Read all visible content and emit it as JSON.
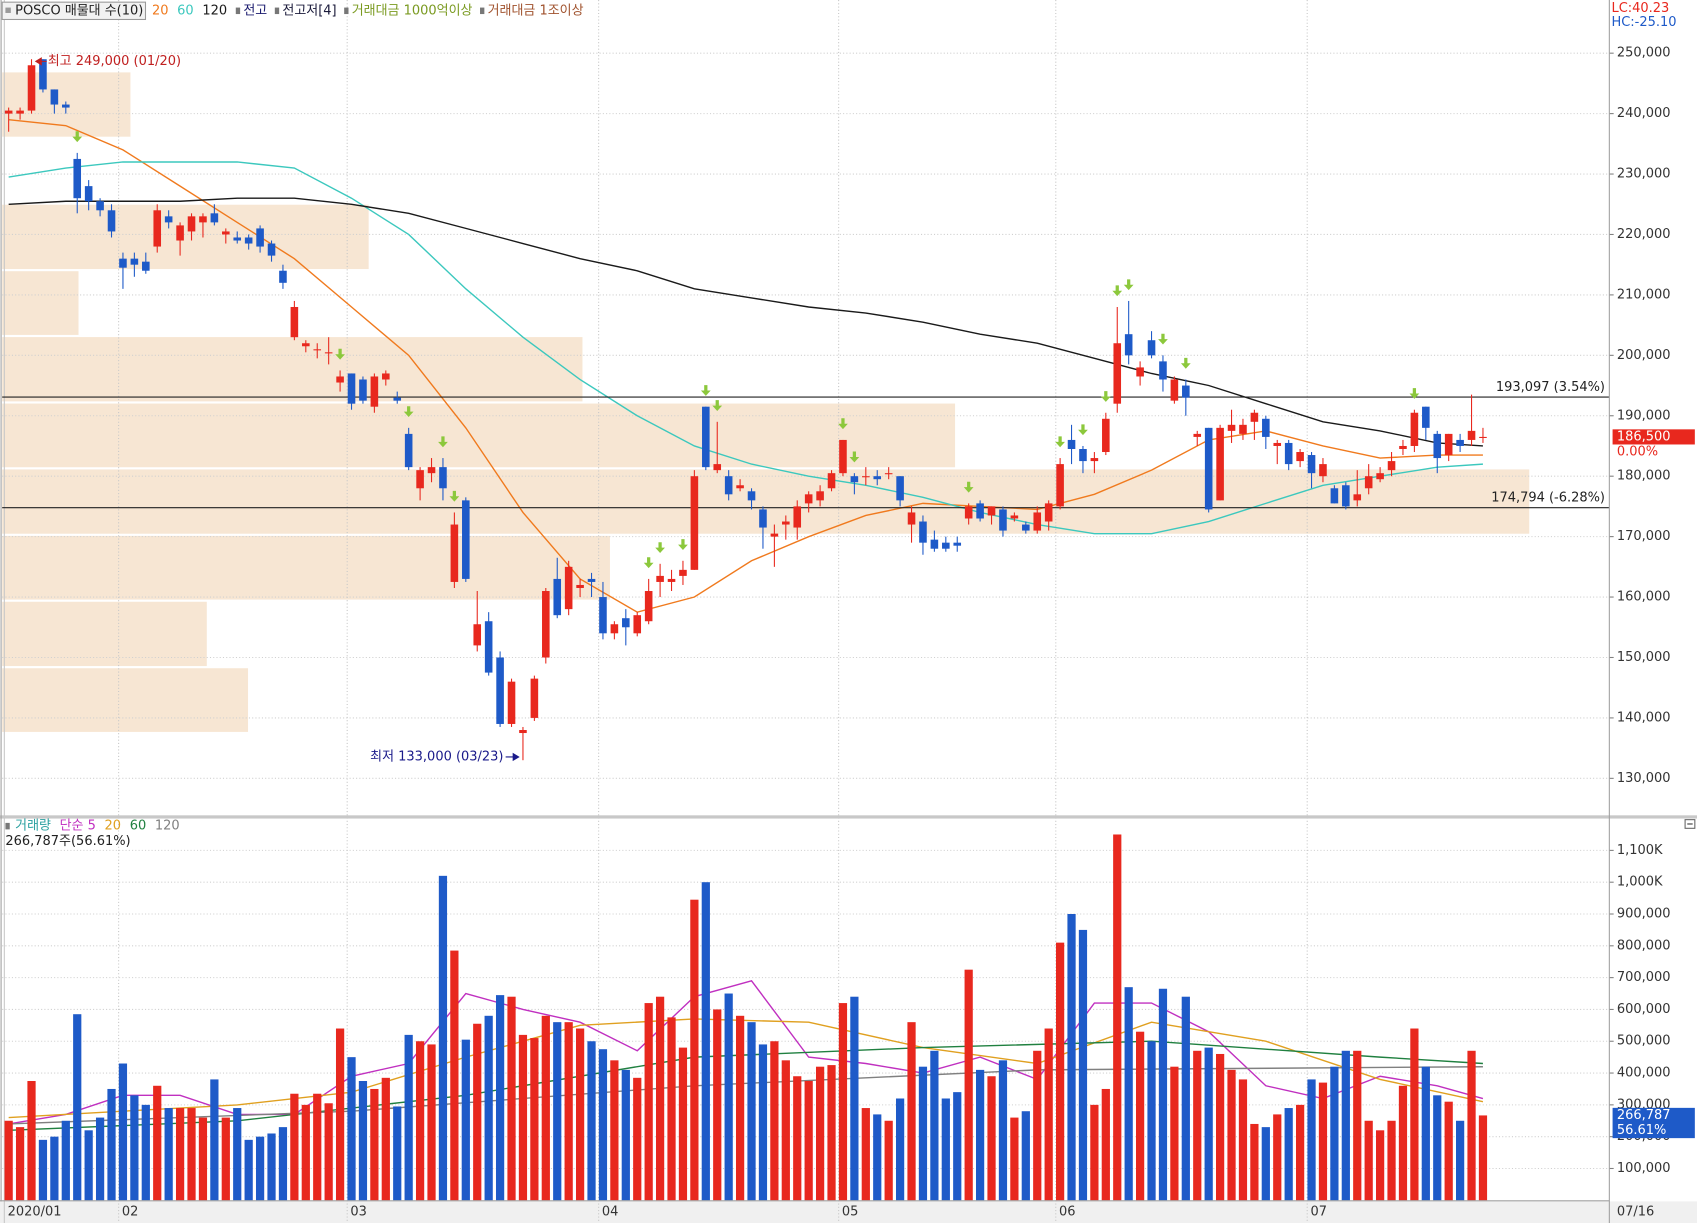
{
  "chart_data": {
    "type": "candlestick",
    "title": "POSCO 매물대 수(10)",
    "header_labels": [
      {
        "text": "전고",
        "color": "#1a1a6e"
      },
      {
        "text": "전고저[4]",
        "color": "#1a1a3a"
      },
      {
        "text": "거래대금 1000억이상",
        "color": "#7a9a20"
      },
      {
        "text": "거래대금 1조이상",
        "color": "#a0522d"
      }
    ],
    "corner_labels": [
      {
        "text": "LC:40.23",
        "color": "#e8281e"
      },
      {
        "text": "HC:-25.10",
        "color": "#1e5ac8"
      }
    ],
    "categories": [
      "2020/01",
      null,
      null,
      null,
      null,
      null,
      null,
      null,
      null,
      null,
      "02",
      null,
      null,
      null,
      null,
      null,
      null,
      null,
      null,
      null,
      null,
      null,
      null,
      null,
      null,
      null,
      null,
      null,
      null,
      null,
      "03",
      null,
      null,
      null,
      null,
      null,
      null,
      null,
      null,
      null,
      null,
      null,
      null,
      null,
      null,
      null,
      null,
      null,
      null,
      null,
      null,
      null,
      "04",
      null,
      null,
      null,
      null,
      null,
      null,
      null,
      null,
      null,
      null,
      null,
      null,
      null,
      null,
      null,
      null,
      null,
      null,
      null,
      null,
      "05",
      null,
      null,
      null,
      null,
      null,
      null,
      null,
      null,
      null,
      null,
      null,
      null,
      null,
      null,
      null,
      null,
      null,
      null,
      "06",
      null,
      null,
      null,
      null,
      null,
      null,
      null,
      null,
      null,
      null,
      null,
      null,
      null,
      null,
      null,
      null,
      null,
      null,
      null,
      null,
      null,
      "07",
      null,
      null,
      null,
      null,
      null,
      null,
      null,
      null,
      null,
      null,
      null,
      null,
      null,
      null,
      null
    ],
    "last_date": "07/16",
    "open": [
      240000,
      240000,
      240500,
      249000,
      244000,
      241500,
      232500,
      228000,
      225500,
      224000,
      216000,
      216000,
      215500,
      218000,
      223000,
      219000,
      220500,
      222000,
      223500,
      220000,
      219500,
      219500,
      221000,
      218500,
      214000,
      203000,
      201500,
      201000,
      200500,
      195500,
      197000,
      196000,
      191500,
      196000,
      193000,
      187000,
      178000,
      180500,
      181500,
      162500,
      176000,
      152000,
      156000,
      150000,
      139000,
      137500,
      140000,
      150000,
      163000,
      158000,
      161500,
      163000,
      160000,
      154000,
      156500,
      154000,
      156000,
      162500,
      162500,
      163500,
      164500,
      191500,
      181000,
      180000,
      178000,
      177500,
      174500,
      170000,
      172000,
      171500,
      175500,
      176000,
      178000,
      180500,
      180000,
      180000,
      180000,
      180500,
      180000,
      172000,
      172500,
      169500,
      169000,
      169000,
      173000,
      175500,
      173500,
      174500,
      173000,
      172000,
      171000,
      172500,
      175000,
      186000,
      184500,
      182500,
      184000,
      192000,
      203500,
      196500,
      202500,
      199000,
      192500,
      195000,
      186500,
      188000,
      176000,
      187500,
      187000,
      189000,
      189500,
      185000,
      185500,
      182500,
      183500,
      180000,
      178000,
      178500,
      176000,
      178000,
      179500,
      181000,
      184500,
      185000,
      191500,
      187000,
      183500,
      186000,
      186000,
      186500
    ],
    "high": [
      241000,
      241000,
      249000,
      249000,
      244000,
      242000,
      233500,
      229000,
      226000,
      225000,
      217000,
      217000,
      217000,
      225000,
      224000,
      222000,
      223500,
      223500,
      225000,
      221000,
      220500,
      220000,
      221500,
      219000,
      215000,
      209000,
      202500,
      202000,
      203000,
      197500,
      197000,
      196500,
      197000,
      197500,
      194000,
      188000,
      181500,
      183000,
      183000,
      174000,
      176500,
      161000,
      157500,
      151000,
      146500,
      138500,
      147000,
      161500,
      166500,
      166000,
      163000,
      164000,
      162500,
      156000,
      158000,
      157500,
      163000,
      165500,
      164500,
      166000,
      181000,
      191500,
      189000,
      181000,
      179500,
      178000,
      175000,
      172000,
      173500,
      176000,
      177500,
      178500,
      181000,
      186000,
      180500,
      181500,
      181000,
      181500,
      180000,
      175000,
      173500,
      171000,
      170000,
      170000,
      175500,
      176000,
      175000,
      175000,
      174000,
      172500,
      175000,
      176000,
      183000,
      188500,
      185000,
      184000,
      190500,
      208000,
      209000,
      199000,
      204000,
      200000,
      196500,
      196000,
      187500,
      188000,
      188500,
      191000,
      189500,
      191000,
      190000,
      186000,
      186000,
      184500,
      184000,
      183000,
      178500,
      179000,
      181000,
      182000,
      181500,
      184000,
      186000,
      191000,
      191500,
      187500,
      187000,
      187000,
      193500,
      188000
    ],
    "low": [
      237000,
      239000,
      240000,
      243500,
      240000,
      240000,
      223500,
      224000,
      223000,
      219500,
      211000,
      213000,
      213500,
      217000,
      221000,
      216500,
      219000,
      219500,
      221500,
      218500,
      218500,
      217500,
      217000,
      215500,
      211000,
      202500,
      200500,
      199500,
      198500,
      194000,
      191000,
      192000,
      190500,
      195000,
      192000,
      181000,
      176000,
      179000,
      176000,
      161500,
      162500,
      151000,
      147000,
      138500,
      138500,
      133000,
      139500,
      149000,
      156500,
      157000,
      160000,
      160000,
      153000,
      153000,
      152000,
      153500,
      155500,
      160000,
      161000,
      162000,
      164500,
      181000,
      180500,
      176000,
      177500,
      174500,
      168000,
      165000,
      169500,
      169500,
      174000,
      175000,
      177500,
      180000,
      177000,
      178500,
      178500,
      179500,
      175000,
      169000,
      167000,
      167500,
      167500,
      167500,
      172000,
      172500,
      172000,
      170000,
      172500,
      170500,
      170500,
      171000,
      174500,
      182000,
      180500,
      180500,
      183500,
      190500,
      198500,
      195000,
      199500,
      194000,
      192000,
      190000,
      185000,
      174000,
      176000,
      185500,
      186000,
      186000,
      184500,
      182000,
      181000,
      181500,
      178000,
      179000,
      175500,
      174500,
      175000,
      177000,
      179000,
      180000,
      183500,
      184000,
      186000,
      180500,
      182500,
      184000,
      185000,
      185500
    ],
    "close": [
      240500,
      240500,
      248000,
      244000,
      241500,
      241000,
      226000,
      225500,
      224000,
      220500,
      214500,
      215000,
      214000,
      224000,
      222000,
      221500,
      223000,
      223000,
      222000,
      220500,
      219000,
      218500,
      218000,
      216500,
      212000,
      208000,
      202000,
      201000,
      200500,
      196500,
      192000,
      192500,
      196500,
      197000,
      192500,
      181500,
      181000,
      181500,
      178000,
      172000,
      163000,
      155500,
      147500,
      139000,
      146000,
      138000,
      146500,
      161000,
      157000,
      165000,
      162000,
      162500,
      154000,
      155500,
      155000,
      157000,
      161000,
      163500,
      163000,
      164500,
      180000,
      181500,
      182000,
      177000,
      178500,
      176000,
      171500,
      170500,
      172500,
      175000,
      177000,
      177500,
      180500,
      186000,
      179000,
      180000,
      179500,
      180500,
      176000,
      174000,
      169000,
      168000,
      168000,
      168500,
      175000,
      173000,
      175000,
      171000,
      173500,
      171000,
      174000,
      175500,
      182000,
      184500,
      182500,
      183000,
      189500,
      202000,
      200000,
      198000,
      200000,
      196000,
      196000,
      193000,
      187000,
      174500,
      188000,
      188500,
      188500,
      190500,
      186500,
      185500,
      182000,
      184000,
      180500,
      182000,
      175500,
      175000,
      177000,
      180000,
      180500,
      182500,
      185000,
      190500,
      188000,
      183000,
      187000,
      185000,
      187500,
      186500
    ],
    "volume": [
      250000,
      230000,
      375000,
      190000,
      200000,
      250000,
      585000,
      220000,
      260000,
      350000,
      430000,
      330000,
      300000,
      360000,
      290000,
      290000,
      290000,
      260000,
      380000,
      260000,
      290000,
      190000,
      200000,
      210000,
      230000,
      335000,
      300000,
      335000,
      305000,
      540000,
      450000,
      375000,
      350000,
      385000,
      295000,
      520000,
      500000,
      490000,
      1020000,
      785000,
      505000,
      555000,
      580000,
      645000,
      640000,
      520000,
      510000,
      580000,
      560000,
      560000,
      540000,
      500000,
      475000,
      440000,
      410000,
      385000,
      620000,
      640000,
      575000,
      480000,
      945000,
      1000000,
      600000,
      650000,
      580000,
      560000,
      490000,
      500000,
      440000,
      390000,
      375000,
      420000,
      425000,
      620000,
      640000,
      290000,
      270000,
      250000,
      320000,
      560000,
      420000,
      470000,
      320000,
      340000,
      725000,
      410000,
      390000,
      440000,
      260000,
      280000,
      470000,
      540000,
      810000,
      900000,
      850000,
      300000,
      350000,
      1150000,
      670000,
      530000,
      500000,
      665000,
      420000,
      640000,
      470000,
      480000,
      460000,
      410000,
      380000,
      240000,
      230000,
      270000,
      290000,
      300000,
      380000,
      370000,
      420000,
      470000,
      470000,
      250000,
      220000,
      250000,
      360000,
      540000,
      420000,
      330000,
      310000,
      250000,
      470000,
      266787
    ],
    "up_color": "#e8281e",
    "down_color": "#1e5ac8",
    "moving_averages": [
      {
        "name": "20",
        "color": "#f07a1e",
        "x": [
          0,
          5,
          10,
          15,
          20,
          25,
          30,
          35,
          40,
          45,
          50,
          55,
          60,
          65,
          70,
          75,
          80,
          85,
          90,
          95,
          100,
          105,
          110,
          115,
          120,
          125,
          129
        ],
        "values": [
          239000,
          238000,
          234000,
          228000,
          222000,
          216000,
          208000,
          200000,
          188000,
          174000,
          163000,
          157500,
          160000,
          166000,
          170000,
          173500,
          175500,
          175000,
          174500,
          177000,
          181000,
          186000,
          187500,
          185000,
          183000,
          183500,
          183500
        ]
      },
      {
        "name": "60",
        "color": "#3cc8be",
        "x": [
          0,
          5,
          10,
          15,
          20,
          25,
          30,
          35,
          40,
          45,
          50,
          55,
          60,
          65,
          70,
          75,
          80,
          85,
          90,
          95,
          100,
          105,
          110,
          115,
          120,
          125,
          129
        ],
        "values": [
          229500,
          231000,
          232000,
          232000,
          232000,
          231000,
          226000,
          220000,
          211000,
          203000,
          196000,
          190000,
          185000,
          182000,
          180000,
          178500,
          176500,
          174000,
          172000,
          170500,
          170500,
          172500,
          175500,
          178500,
          180000,
          181500,
          182000
        ]
      },
      {
        "name": "120",
        "color": "#1a1a1a",
        "x": [
          0,
          5,
          10,
          15,
          20,
          25,
          30,
          35,
          40,
          45,
          50,
          55,
          60,
          65,
          70,
          75,
          80,
          85,
          90,
          95,
          100,
          105,
          110,
          115,
          120,
          125,
          129
        ],
        "values": [
          225000,
          225500,
          225500,
          225500,
          226000,
          226000,
          225000,
          223500,
          221000,
          218500,
          216000,
          214000,
          211000,
          209500,
          208000,
          207000,
          205500,
          203500,
          202000,
          199500,
          197000,
          195000,
          192000,
          189000,
          187500,
          185500,
          185000
        ]
      }
    ],
    "ylim": [
      123700,
      258800
    ],
    "yticks": [
      {
        "value": 130000,
        "label": "130,000"
      },
      {
        "value": 140000,
        "label": "140,000"
      },
      {
        "value": 150000,
        "label": "150,000"
      },
      {
        "value": 160000,
        "label": "160,000"
      },
      {
        "value": 170000,
        "label": "170,000"
      },
      {
        "value": 180000,
        "label": "180,000"
      },
      {
        "value": 190000,
        "label": "190,000"
      },
      {
        "value": 200000,
        "label": "200,000"
      },
      {
        "value": 210000,
        "label": "210,000"
      },
      {
        "value": 220000,
        "label": "220,000"
      },
      {
        "value": 230000,
        "label": "230,000"
      },
      {
        "value": 240000,
        "label": "240,000"
      },
      {
        "value": 250000,
        "label": "250,000"
      }
    ],
    "price_lines": [
      {
        "value": 193097,
        "label": "193,097 (3.54%)"
      },
      {
        "value": 174794,
        "label": "174,794 (-6.28%)"
      }
    ],
    "high_label": "최고 249,000 (01/20)",
    "low_label": "최저 133,000 (03/23)",
    "last_price": {
      "value": 186500,
      "label": "186,500"
    },
    "last_change": "0.00%",
    "signals": [
      6,
      29,
      35,
      38,
      39,
      56,
      57,
      59,
      61,
      62,
      73,
      74,
      84,
      92,
      94,
      96,
      97,
      98,
      101,
      103,
      123
    ],
    "signal_color": "#8cc83c",
    "volume_profile": {
      "edges": [
        137500,
        148400,
        159400,
        170300,
        181300,
        192200,
        203200,
        214100,
        225100,
        236000,
        247000
      ],
      "values": [
        16.1,
        13.4,
        39.8,
        100,
        62.4,
        38,
        5,
        24,
        0,
        8.4
      ],
      "xlim": [
        0,
        100
      ],
      "color": "#f7e6d3"
    },
    "grid": true,
    "volume_title": "거래량",
    "volume_title_color": "#2aa0a0",
    "volume_moving_averages": [
      {
        "name": "단순 5",
        "color": "#c030c0",
        "x": [
          0,
          5,
          10,
          15,
          20,
          25,
          30,
          35,
          40,
          45,
          50,
          55,
          60,
          65,
          70,
          75,
          80,
          85,
          90,
          95,
          100,
          105,
          110,
          115,
          120,
          125,
          129
        ],
        "values": [
          240000,
          270000,
          330000,
          330000,
          270000,
          270000,
          390000,
          430000,
          650000,
          600000,
          560000,
          470000,
          640000,
          690000,
          450000,
          430000,
          400000,
          450000,
          380000,
          620000,
          620000,
          530000,
          360000,
          320000,
          390000,
          360000,
          320000
        ]
      },
      {
        "name": "20",
        "color": "#e0a020",
        "x": [
          0,
          10,
          20,
          30,
          40,
          50,
          60,
          70,
          80,
          90,
          100,
          110,
          120,
          129
        ],
        "values": [
          260000,
          280000,
          300000,
          340000,
          450000,
          550000,
          570000,
          560000,
          480000,
          430000,
          560000,
          500000,
          380000,
          310000
        ]
      },
      {
        "name": "60",
        "color": "#208040",
        "x": [
          0,
          20,
          40,
          60,
          80,
          100,
          120,
          129
        ],
        "values": [
          220000,
          250000,
          330000,
          450000,
          480000,
          500000,
          450000,
          430000
        ]
      },
      {
        "name": "120",
        "color": "#808080",
        "x": [
          0,
          30,
          60,
          90,
          129
        ],
        "values": [
          240000,
          280000,
          360000,
          410000,
          420000
        ]
      }
    ],
    "volume_summary": "266,787주(56.61%)",
    "volume_ylim": [
      0,
      1200000
    ],
    "volume_yticks": [
      {
        "value": 100000,
        "label": "100,000"
      },
      {
        "value": 200000,
        "label": "200,000"
      },
      {
        "value": 300000,
        "label": "300,000"
      },
      {
        "value": 400000,
        "label": "400,000"
      },
      {
        "value": 500000,
        "label": "500,000"
      },
      {
        "value": 600000,
        "label": "600,000"
      },
      {
        "value": 700000,
        "label": "700,000"
      },
      {
        "value": 800000,
        "label": "800,000"
      },
      {
        "value": 900000,
        "label": "900,000"
      },
      {
        "value": 1000000,
        "label": "1,000K"
      },
      {
        "value": 1100000,
        "label": "1,100K"
      }
    ],
    "last_volume": {
      "value": 266787,
      "label": "266,787"
    },
    "last_volume_ratio": "56.61%"
  }
}
